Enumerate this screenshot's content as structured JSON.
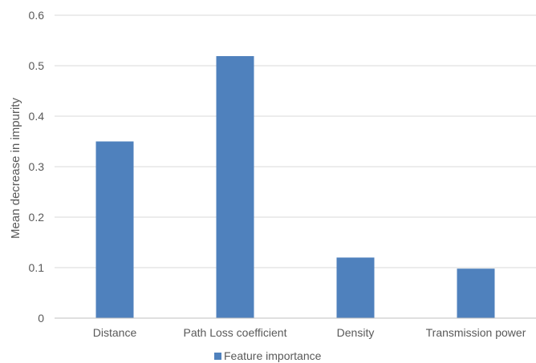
{
  "chart_data": {
    "type": "bar",
    "title": "",
    "xlabel": "",
    "ylabel": "Mean decrease in impurity",
    "categories": [
      "Distance",
      "Path Loss coefficient",
      "Density",
      "Transmission power"
    ],
    "series": [
      {
        "name": "Feature importance",
        "values": [
          0.35,
          0.519,
          0.12,
          0.098
        ],
        "color": "#4f81bd"
      }
    ],
    "ylim": [
      0,
      0.6
    ],
    "yticks": [
      "0",
      "0.1",
      "0.2",
      "0.3",
      "0.4",
      "0.5",
      "0.6"
    ],
    "grid": true,
    "legend_position": "bottom"
  }
}
